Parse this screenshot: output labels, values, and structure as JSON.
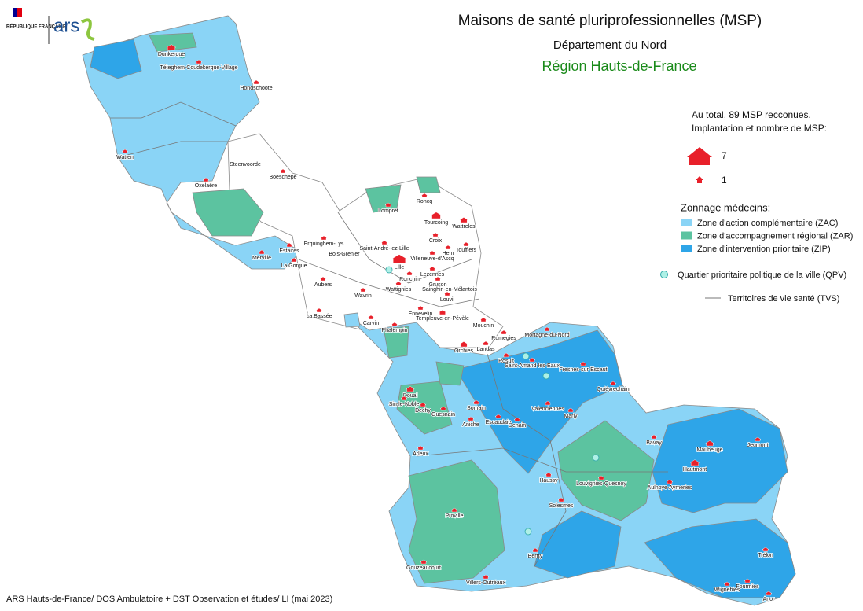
{
  "header": {
    "logo_republic": "RÉPUBLIQUE FRANÇAISE",
    "logo_ars": "ars",
    "title": "Maisons de santé pluriprofessionnelles (MSP)",
    "subtitle": "Département du Nord",
    "region": "Région Hauts-de-France"
  },
  "legend": {
    "total": "Au total, 89 MSP recconues.",
    "implantation": "Implantation et nombre de MSP:",
    "size_max": "7",
    "size_min": "1",
    "zoning_title": "Zonnage médecins:",
    "zones": [
      {
        "label": "Zone d'action complémentaire (ZAC)",
        "color": "#8ad4f6"
      },
      {
        "label": "Zone d'accompagnement régional (ZAR)",
        "color": "#5cc3a0"
      },
      {
        "label": "Zone d'intervention prioritaire (ZIP)",
        "color": "#2ea5e8"
      }
    ],
    "qpv": "Quartier prioritaire politique de la ville (QPV)",
    "tvs": "Territoires de vie santé (TVS)"
  },
  "places": [
    "Dunkerque",
    "Téteghem-Coudekerque-Village",
    "Hondschoote",
    "Watten",
    "Steenvoorde",
    "Oxelaëre",
    "Boeschepe",
    "Erquinghem-Lys",
    "Bois-Grenier",
    "Estaires",
    "La Gorgue",
    "Merville",
    "Aubers",
    "Wavrin",
    "La Bassée",
    "Carvin",
    "Phalempin",
    "Lompret",
    "Roncq",
    "Tourcoing",
    "Wattrelos",
    "Croix",
    "Toufflers",
    "Hem",
    "Saint-André-lez-Lille",
    "Villeneuve-d'Ascq",
    "Lille",
    "Lezennes",
    "Ronchin",
    "Wattignies",
    "Gruson",
    "Sainghin-en-Mélantois",
    "Louvil",
    "Ennevelin",
    "Templeuve-en-Pévèle",
    "Mouchin",
    "Orchies",
    "Landas",
    "Rumegies",
    "Mortagne-du-Nord",
    "Rosult",
    "Saint-Amand-les-Eaux",
    "Fresnes-sur-Escaut",
    "Quiévrechain",
    "Valenciennes",
    "Marly",
    "Douai",
    "Sin-le-Noble",
    "Dechy",
    "Guesnain",
    "Somain",
    "Aniche",
    "Escaudain",
    "Denain",
    "Arleux",
    "Haussy",
    "Louvignies-Quesnoy",
    "Bavay",
    "Maubeuge",
    "Jeumont",
    "Hautmont",
    "Aulnoye-Aymeries",
    "Solesmes",
    "Proville",
    "Bertry",
    "Gouzeaucourt",
    "Villers-Outréaux",
    "Trélon",
    "Wignehies",
    "Fourmies",
    "Anor"
  ],
  "footer": "ARS Hauts-de-France/ DOS Ambulatoire + DST Observation et études/ LI (mai 2023)"
}
